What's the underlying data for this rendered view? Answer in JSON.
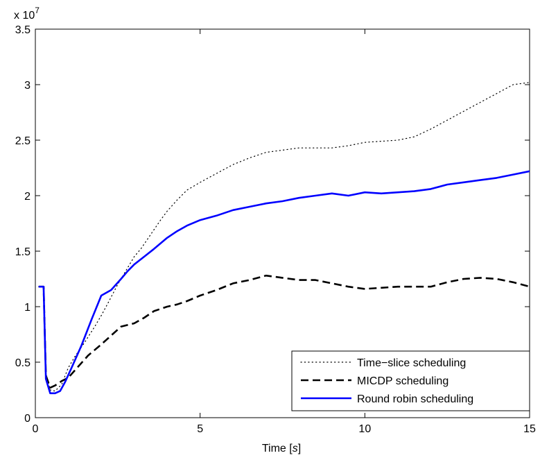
{
  "chart_data": {
    "type": "line",
    "xlabel_prefix": "Time [",
    "xlabel_unit": "s",
    "xlabel_suffix": "]",
    "ylabel": "",
    "exponent_base": "x 10",
    "exponent_power": "7",
    "xlim": [
      0,
      15
    ],
    "ylim": [
      0,
      3.5
    ],
    "xticks": [
      0,
      5,
      10,
      15
    ],
    "xtick_labels": [
      "0",
      "5",
      "10",
      "15"
    ],
    "yticks": [
      0,
      0.5,
      1,
      1.5,
      2,
      2.5,
      3,
      3.5
    ],
    "ytick_labels": [
      "0",
      "0.5",
      "1",
      "1.5",
      "2",
      "2.5",
      "3",
      "3.5"
    ],
    "grid": false,
    "legend_position": "bottom-right",
    "series": [
      {
        "name": "Time−slice scheduling",
        "color": "#000000",
        "style": "dotted",
        "x": [
          0.1,
          0.25,
          0.32,
          0.45,
          0.6,
          0.8,
          1.0,
          1.2,
          1.5,
          1.8,
          2.0,
          2.2,
          2.5,
          2.8,
          3.0,
          3.2,
          3.5,
          3.8,
          4.0,
          4.3,
          4.6,
          5.0,
          5.5,
          6.0,
          6.5,
          7.0,
          7.5,
          8.0,
          8.5,
          9.0,
          9.5,
          10.0,
          10.5,
          11.0,
          11.5,
          12.0,
          12.5,
          13.0,
          13.5,
          14.0,
          14.5,
          15.0
        ],
        "y": [
          1.18,
          1.18,
          0.4,
          0.25,
          0.24,
          0.3,
          0.45,
          0.55,
          0.68,
          0.82,
          0.92,
          1.03,
          1.2,
          1.35,
          1.45,
          1.52,
          1.65,
          1.78,
          1.86,
          1.96,
          2.05,
          2.12,
          2.2,
          2.28,
          2.34,
          2.39,
          2.41,
          2.43,
          2.43,
          2.43,
          2.45,
          2.48,
          2.49,
          2.5,
          2.53,
          2.6,
          2.68,
          2.76,
          2.84,
          2.92,
          3.0,
          3.02
        ]
      },
      {
        "name": "MICDP scheduling",
        "color": "#000000",
        "style": "dashed",
        "x": [
          0.1,
          0.25,
          0.32,
          0.45,
          0.6,
          0.8,
          1.0,
          1.3,
          1.6,
          2.0,
          2.3,
          2.6,
          3.0,
          3.3,
          3.6,
          4.0,
          4.3,
          4.6,
          5.0,
          5.5,
          6.0,
          6.5,
          7.0,
          7.5,
          8.0,
          8.5,
          9.0,
          9.5,
          10.0,
          10.5,
          11.0,
          11.5,
          12.0,
          12.5,
          13.0,
          13.5,
          14.0,
          14.5,
          15.0
        ],
        "y": [
          1.18,
          1.18,
          0.38,
          0.27,
          0.29,
          0.33,
          0.36,
          0.46,
          0.56,
          0.66,
          0.74,
          0.82,
          0.85,
          0.9,
          0.96,
          1.0,
          1.02,
          1.05,
          1.1,
          1.15,
          1.21,
          1.24,
          1.28,
          1.26,
          1.24,
          1.24,
          1.21,
          1.18,
          1.16,
          1.17,
          1.18,
          1.18,
          1.18,
          1.22,
          1.25,
          1.26,
          1.25,
          1.22,
          1.18
        ]
      },
      {
        "name": "Round robin scheduling",
        "color": "#0000ff",
        "style": "solid",
        "x": [
          0.1,
          0.25,
          0.32,
          0.45,
          0.6,
          0.75,
          0.9,
          1.1,
          1.4,
          1.7,
          2.0,
          2.3,
          2.6,
          2.8,
          3.0,
          3.3,
          3.6,
          4.0,
          4.3,
          4.6,
          5.0,
          5.5,
          6.0,
          6.5,
          7.0,
          7.5,
          8.0,
          8.5,
          9.0,
          9.5,
          10.0,
          10.5,
          11.0,
          11.5,
          12.0,
          12.5,
          13.0,
          13.5,
          14.0,
          14.5,
          15.0
        ],
        "y": [
          1.18,
          1.18,
          0.35,
          0.22,
          0.22,
          0.24,
          0.32,
          0.45,
          0.65,
          0.88,
          1.1,
          1.15,
          1.25,
          1.32,
          1.38,
          1.45,
          1.52,
          1.62,
          1.68,
          1.73,
          1.78,
          1.82,
          1.87,
          1.9,
          1.93,
          1.95,
          1.98,
          2.0,
          2.02,
          2.0,
          2.03,
          2.02,
          2.03,
          2.04,
          2.06,
          2.1,
          2.12,
          2.14,
          2.16,
          2.19,
          2.22
        ]
      }
    ]
  }
}
